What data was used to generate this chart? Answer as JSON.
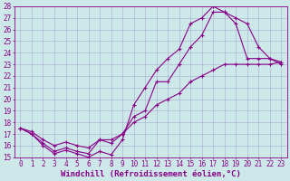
{
  "xlabel": "Windchill (Refroidissement éolien,°C)",
  "ylabel": "",
  "xlim": [
    -0.5,
    23.5
  ],
  "ylim": [
    15,
    28
  ],
  "xticks": [
    0,
    1,
    2,
    3,
    4,
    5,
    6,
    7,
    8,
    9,
    10,
    11,
    12,
    13,
    14,
    15,
    16,
    17,
    18,
    19,
    20,
    21,
    22,
    23
  ],
  "yticks": [
    15,
    16,
    17,
    18,
    19,
    20,
    21,
    22,
    23,
    24,
    25,
    26,
    27,
    28
  ],
  "bg_color": "#cce8e8",
  "line_color": "#880088",
  "grid_color": "#aaaacc",
  "line1_x": [
    0,
    1,
    2,
    3,
    4,
    5,
    6,
    7,
    8,
    9,
    10,
    11,
    12,
    13,
    14,
    15,
    16,
    17,
    18,
    19,
    20,
    21,
    22,
    23
  ],
  "line1_y": [
    17.5,
    17.0,
    16.0,
    15.3,
    15.6,
    15.3,
    15.0,
    15.5,
    15.2,
    16.5,
    19.5,
    21.0,
    22.5,
    23.5,
    24.3,
    26.5,
    27.0,
    28.0,
    27.5,
    27.0,
    26.5,
    24.5,
    23.5,
    23.0
  ],
  "line2_x": [
    0,
    1,
    2,
    3,
    4,
    5,
    6,
    7,
    8,
    9,
    10,
    11,
    12,
    13,
    14,
    15,
    16,
    17,
    18,
    19,
    20,
    21,
    22,
    23
  ],
  "line2_y": [
    17.5,
    17.0,
    16.2,
    15.5,
    15.8,
    15.5,
    15.3,
    16.5,
    16.2,
    17.0,
    18.5,
    19.0,
    21.5,
    21.5,
    23.0,
    24.5,
    25.5,
    27.5,
    27.5,
    26.5,
    23.5,
    23.5,
    23.5,
    23.2
  ],
  "line3_x": [
    0,
    1,
    2,
    3,
    4,
    5,
    6,
    7,
    8,
    9,
    10,
    11,
    12,
    13,
    14,
    15,
    16,
    17,
    18,
    19,
    20,
    21,
    22,
    23
  ],
  "line3_y": [
    17.5,
    17.2,
    16.5,
    16.0,
    16.3,
    16.0,
    15.8,
    16.5,
    16.5,
    17.0,
    18.0,
    18.5,
    19.5,
    20.0,
    20.5,
    21.5,
    22.0,
    22.5,
    23.0,
    23.0,
    23.0,
    23.0,
    23.0,
    23.2
  ],
  "font_size_label": 6.5,
  "font_size_tick": 5.5,
  "marker": "+",
  "marker_size": 3.5,
  "linewidth": 0.8
}
